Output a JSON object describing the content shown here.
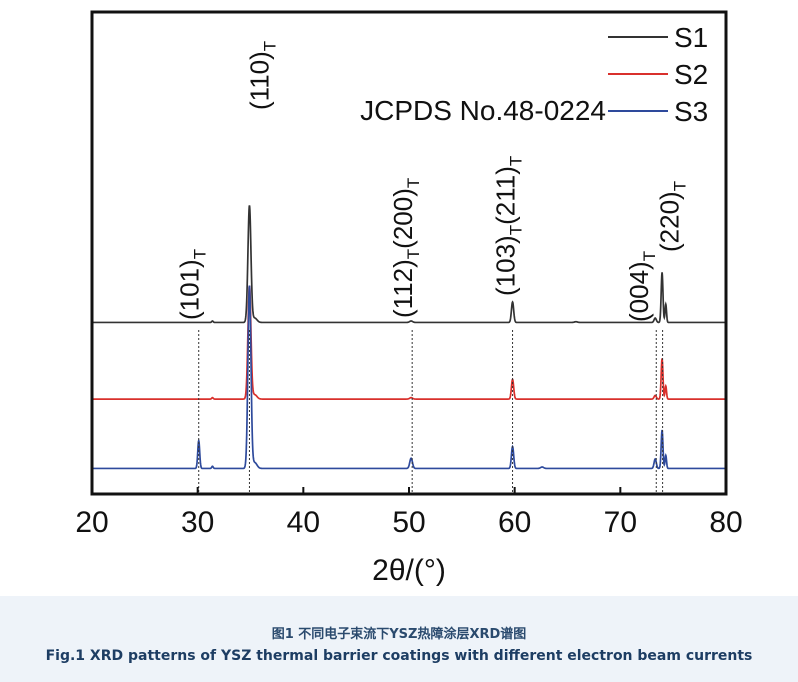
{
  "caption": {
    "cn": "图1 不同电子束流下YSZ热障涂层XRD谱图",
    "en": "Fig.1 XRD patterns of YSZ thermal barrier coatings with different electron beam currents"
  },
  "chart_data": {
    "type": "line",
    "xlabel": "2θ/(°)",
    "ylabel": "",
    "xlim": [
      20,
      80
    ],
    "xticks": [
      "20",
      "30",
      "40",
      "50",
      "60",
      "70",
      "80"
    ],
    "grid": false,
    "legend_position": "top-right",
    "legend_note": "JCPDS No.48-0224",
    "series": [
      {
        "name": "S1",
        "color": "#333333",
        "offset": 2.35,
        "peaks": [
          [
            31.4,
            0.02,
            0.1
          ],
          [
            34.9,
            1.6,
            0.2
          ],
          [
            35.4,
            0.06,
            0.3
          ],
          [
            50.2,
            0.02,
            0.2
          ],
          [
            59.8,
            0.28,
            0.15
          ],
          [
            65.8,
            0.01,
            0.2
          ],
          [
            73.3,
            0.06,
            0.15
          ],
          [
            73.95,
            0.68,
            0.12
          ],
          [
            74.3,
            0.25,
            0.1
          ]
        ]
      },
      {
        "name": "S2",
        "color": "#d9302c",
        "offset": 1.3,
        "peaks": [
          [
            31.4,
            0.02,
            0.1
          ],
          [
            34.9,
            1.55,
            0.2
          ],
          [
            35.4,
            0.06,
            0.3
          ],
          [
            50.2,
            0.02,
            0.2
          ],
          [
            59.8,
            0.27,
            0.15
          ],
          [
            73.3,
            0.05,
            0.15
          ],
          [
            73.95,
            0.55,
            0.12
          ],
          [
            74.3,
            0.18,
            0.1
          ]
        ]
      },
      {
        "name": "S3",
        "color": "#2e4a9c",
        "offset": 0.35,
        "peaks": [
          [
            30.1,
            0.38,
            0.13
          ],
          [
            31.4,
            0.03,
            0.1
          ],
          [
            34.9,
            2.5,
            0.2
          ],
          [
            35.4,
            0.08,
            0.3
          ],
          [
            50.2,
            0.14,
            0.18
          ],
          [
            59.8,
            0.3,
            0.15
          ],
          [
            62.6,
            0.02,
            0.2
          ],
          [
            73.3,
            0.13,
            0.15
          ],
          [
            73.95,
            0.52,
            0.12
          ],
          [
            74.3,
            0.18,
            0.1
          ]
        ]
      }
    ],
    "reference_lines": [
      30.1,
      34.9,
      50.3,
      59.8,
      73.4,
      74.0
    ],
    "annotations": [
      {
        "label": "(101)T",
        "main": "(101)",
        "sub": "T",
        "x": 30.1
      },
      {
        "label": "(110)T",
        "main": "(110)",
        "sub": "T",
        "x": 36.7
      },
      {
        "label": "(112)T(200)T",
        "main": "(112)",
        "sub": "T",
        "main2": "(200)",
        "sub2": "T",
        "x": 50.3
      },
      {
        "label": "(103)T(211)T",
        "main": "(103)",
        "sub": "T",
        "main2": "(211)",
        "sub2": "T",
        "x": 60.0
      },
      {
        "label": "(004)T",
        "main": "(004)",
        "sub": "T",
        "x": 72.6
      },
      {
        "label": "(220)T",
        "main": "(220)",
        "sub": "T",
        "x": 75.5
      }
    ]
  }
}
